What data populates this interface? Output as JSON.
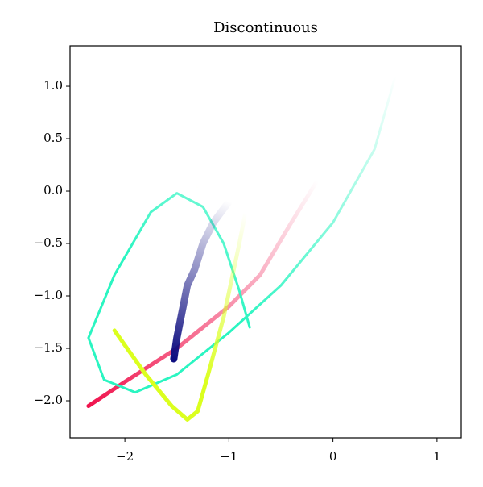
{
  "chart_data": {
    "type": "line",
    "title": "Discontinuous",
    "xlim": [
      -2.527,
      1.233
    ],
    "ylim": [
      -2.354,
      1.385
    ],
    "xticks": [
      {
        "value": -2,
        "label": "−2"
      },
      {
        "value": -1,
        "label": "−1"
      },
      0,
      1
    ],
    "yticks": [
      {
        "value": 1,
        "label": "1.0"
      },
      0.5,
      {
        "value": 0,
        "label": "0.0"
      },
      {
        "value": -0.5,
        "label": "−0.5"
      },
      {
        "value": -1,
        "label": "−1.0"
      },
      {
        "value": -1.5,
        "label": "−1.5"
      },
      {
        "value": -2,
        "label": "−2.0"
      }
    ],
    "series": [
      {
        "color": "#f0134d",
        "width": 5,
        "alpha": [
          1,
          0
        ],
        "x": [
          -2.35,
          -2.0,
          -1.5,
          -1.0,
          -0.7,
          -0.4,
          -0.15
        ],
        "values": [
          -2.05,
          -1.82,
          -1.5,
          -1.1,
          -0.8,
          -0.3,
          0.1
        ]
      },
      {
        "color": "#2af5c1",
        "width": 3,
        "alpha": [
          1,
          0
        ],
        "x": [
          -0.8,
          -0.9,
          -1.05,
          -1.25,
          -1.5,
          -1.75,
          -2.1,
          -2.35,
          -2.2,
          -1.9,
          -1.5,
          -1.0,
          -0.5,
          0.0,
          0.4,
          0.6
        ],
        "values": [
          -1.3,
          -0.95,
          -0.5,
          -0.15,
          -0.02,
          -0.2,
          -0.8,
          -1.4,
          -1.8,
          -1.92,
          -1.75,
          -1.35,
          -0.9,
          -0.3,
          0.4,
          1.1
        ]
      },
      {
        "color": "#dbff1e",
        "width": 5,
        "alpha": [
          1,
          0
        ],
        "x": [
          -2.1,
          -1.8,
          -1.55,
          -1.4,
          -1.3,
          -1.2,
          -1.05,
          -0.9,
          -0.78,
          -0.7,
          -0.75,
          -0.9,
          -1.1,
          -1.3
        ],
        "values": [
          -1.33,
          -1.75,
          -2.05,
          -2.18,
          -2.1,
          -1.75,
          -1.2,
          -0.5,
          0.1,
          0.35,
          0.42,
          0.35,
          0.2,
          0.05
        ]
      },
      {
        "color": "#0d0d80",
        "width": 9,
        "alpha": [
          1,
          0
        ],
        "x": [
          -1.53,
          -1.5,
          -1.45,
          -1.4,
          -1.33,
          -1.25,
          -1.15,
          -1.0
        ],
        "values": [
          -1.6,
          -1.4,
          -1.15,
          -0.9,
          -0.75,
          -0.5,
          -0.3,
          -0.1
        ]
      }
    ]
  }
}
